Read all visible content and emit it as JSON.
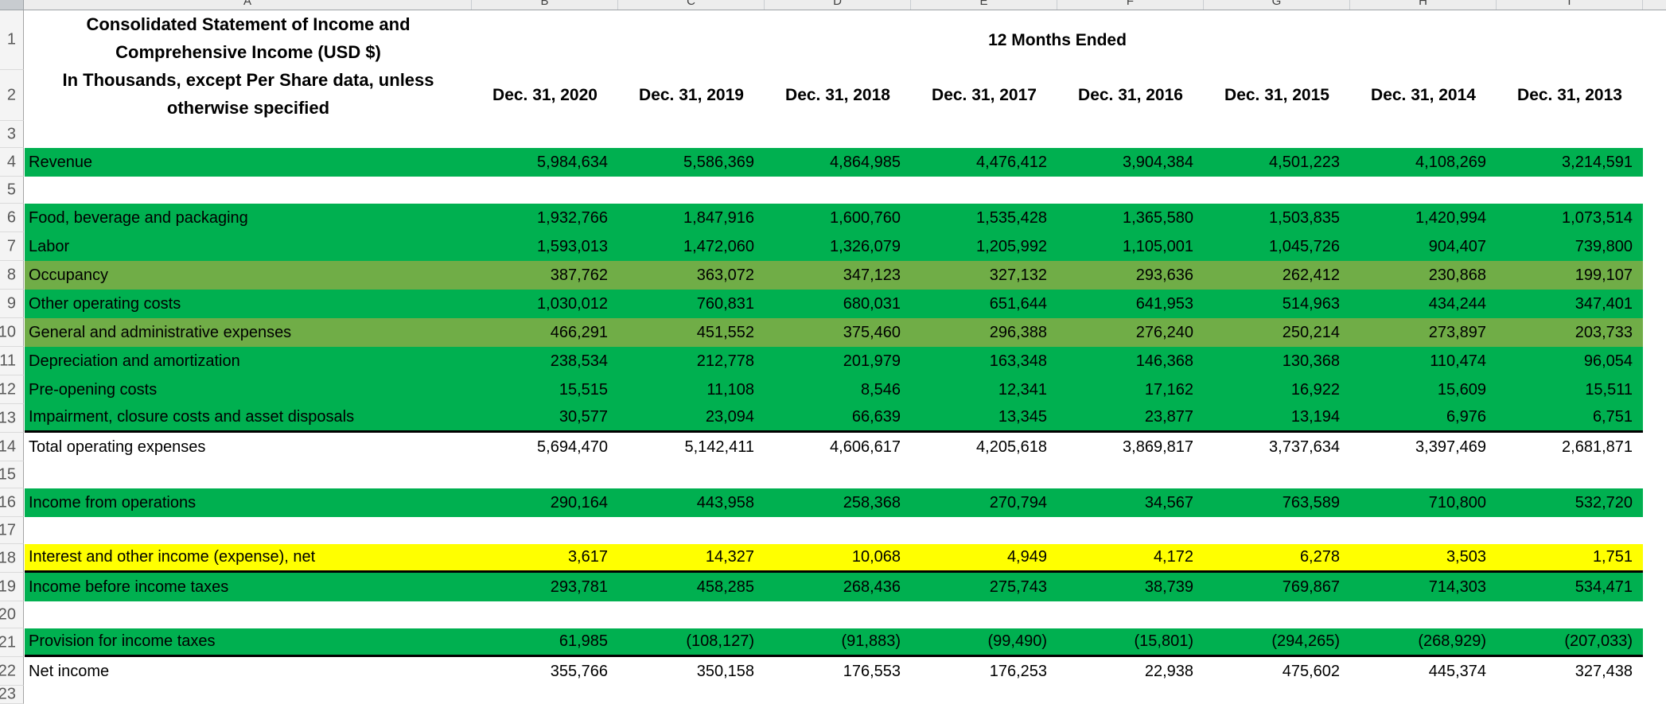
{
  "sheet": {
    "column_letters": [
      "A",
      "B",
      "C",
      "D",
      "E",
      "F",
      "G",
      "H",
      "I"
    ],
    "title_lines": [
      "Consolidated Statement of Income and",
      "Comprehensive Income (USD $)",
      "In Thousands, except Per Share data, unless",
      "otherwise specified"
    ],
    "period_header": "12 Months Ended",
    "year_headers": [
      "Dec. 31, 2020",
      "Dec. 31, 2019",
      "Dec. 31, 2018",
      "Dec. 31, 2017",
      "Dec. 31, 2016",
      "Dec. 31, 2015",
      "Dec. 31, 2014",
      "Dec. 31, 2013"
    ],
    "colors": {
      "green": "#00B050",
      "olive": "#70AD47",
      "yellow": "#FFFF00"
    },
    "rows": [
      {
        "num": 1,
        "type": "period-header"
      },
      {
        "num": 2,
        "type": "year-headers"
      },
      {
        "num": 3,
        "type": "blank"
      },
      {
        "num": 4,
        "type": "data",
        "fill": "green",
        "label": "Revenue",
        "values": [
          "5,984,634",
          "5,586,369",
          "4,864,985",
          "4,476,412",
          "3,904,384",
          "4,501,223",
          "4,108,269",
          "3,214,591"
        ]
      },
      {
        "num": 5,
        "type": "blank"
      },
      {
        "num": 6,
        "type": "data",
        "fill": "green",
        "label": "Food, beverage and packaging",
        "values": [
          "1,932,766",
          "1,847,916",
          "1,600,760",
          "1,535,428",
          "1,365,580",
          "1,503,835",
          "1,420,994",
          "1,073,514"
        ]
      },
      {
        "num": 7,
        "type": "data",
        "fill": "green",
        "label": "Labor",
        "values": [
          "1,593,013",
          "1,472,060",
          "1,326,079",
          "1,205,992",
          "1,105,001",
          "1,045,726",
          "904,407",
          "739,800"
        ]
      },
      {
        "num": 8,
        "type": "data",
        "fill": "olive",
        "label": "Occupancy",
        "values": [
          "387,762",
          "363,072",
          "347,123",
          "327,132",
          "293,636",
          "262,412",
          "230,868",
          "199,107"
        ]
      },
      {
        "num": 9,
        "type": "data",
        "fill": "green",
        "label": "Other operating costs",
        "values": [
          "1,030,012",
          "760,831",
          "680,031",
          "651,644",
          "641,953",
          "514,963",
          "434,244",
          "347,401"
        ]
      },
      {
        "num": 10,
        "type": "data",
        "fill": "olive",
        "label": "General and administrative expenses",
        "values": [
          "466,291",
          "451,552",
          "375,460",
          "296,388",
          "276,240",
          "250,214",
          "273,897",
          "203,733"
        ]
      },
      {
        "num": 11,
        "type": "data",
        "fill": "green",
        "label": "Depreciation and amortization",
        "values": [
          "238,534",
          "212,778",
          "201,979",
          "163,348",
          "146,368",
          "130,368",
          "110,474",
          "96,054"
        ]
      },
      {
        "num": 12,
        "type": "data",
        "fill": "green",
        "label": "Pre-opening costs",
        "values": [
          "15,515",
          "11,108",
          "8,546",
          "12,341",
          "17,162",
          "16,922",
          "15,609",
          "15,511"
        ]
      },
      {
        "num": 13,
        "type": "data",
        "fill": "green",
        "border_bottom": true,
        "label": "Impairment, closure costs and asset disposals",
        "values": [
          "30,577",
          "23,094",
          "66,639",
          "13,345",
          "23,877",
          "13,194",
          "6,976",
          "6,751"
        ]
      },
      {
        "num": 14,
        "type": "data",
        "fill": "none",
        "label": "Total operating expenses",
        "values": [
          "5,694,470",
          "5,142,411",
          "4,606,617",
          "4,205,618",
          "3,869,817",
          "3,737,634",
          "3,397,469",
          "2,681,871"
        ]
      },
      {
        "num": 15,
        "type": "blank"
      },
      {
        "num": 16,
        "type": "data",
        "fill": "green",
        "label": "Income from operations",
        "values": [
          "290,164",
          "443,958",
          "258,368",
          "270,794",
          "34,567",
          "763,589",
          "710,800",
          "532,720"
        ]
      },
      {
        "num": 17,
        "type": "blank"
      },
      {
        "num": 18,
        "type": "data",
        "fill": "yellow",
        "border_bottom": true,
        "label": "Interest and other income (expense), net",
        "values": [
          "3,617",
          "14,327",
          "10,068",
          "4,949",
          "4,172",
          "6,278",
          "3,503",
          "1,751"
        ]
      },
      {
        "num": 19,
        "type": "data",
        "fill": "green",
        "label": "Income before income taxes",
        "values": [
          "293,781",
          "458,285",
          "268,436",
          "275,743",
          "38,739",
          "769,867",
          "714,303",
          "534,471"
        ]
      },
      {
        "num": 20,
        "type": "blank"
      },
      {
        "num": 21,
        "type": "data",
        "fill": "green",
        "border_bottom": true,
        "label": "Provision for income taxes",
        "values": [
          "61,985",
          "(108,127)",
          "(91,883)",
          "(99,490)",
          "(15,801)",
          "(294,265)",
          "(268,929)",
          "(207,033)"
        ]
      },
      {
        "num": 22,
        "type": "data",
        "fill": "none",
        "label": "Net income",
        "values": [
          "355,766",
          "350,158",
          "176,553",
          "176,253",
          "22,938",
          "475,602",
          "445,374",
          "327,438"
        ]
      },
      {
        "num": 23,
        "type": "blank"
      }
    ]
  }
}
